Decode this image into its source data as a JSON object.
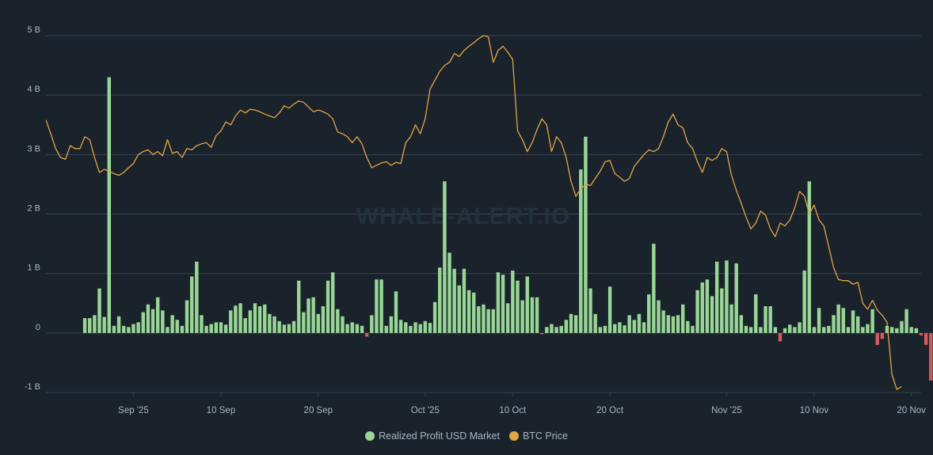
{
  "colors": {
    "background": "#1a232c",
    "grid": "#34424f",
    "profit_positive": "#98d695",
    "profit_negative": "#d65a5a",
    "btc_price": "#e3a544",
    "axis_text": "#aab4be",
    "watermark": "#22313b"
  },
  "watermark": "WHALE-ALERT.IO",
  "chart_data": {
    "type": "bar",
    "y_axis": {
      "ticks": [
        -1,
        0,
        1,
        2,
        3,
        4,
        5
      ],
      "tick_labels": [
        "-1 B",
        "0",
        "1 B",
        "2 B",
        "3 B",
        "4 B",
        "5 B"
      ],
      "range": [
        -1,
        5
      ],
      "unit": "B"
    },
    "x_axis": {
      "range": [
        "2025-08-23",
        "2025-11-21"
      ],
      "ticks": [
        {
          "date": "2025-09-01",
          "label": "Sep '25"
        },
        {
          "date": "2025-09-10",
          "label": "10 Sep"
        },
        {
          "date": "2025-09-20",
          "label": "20 Sep"
        },
        {
          "date": "2025-10-01",
          "label": "Oct '25"
        },
        {
          "date": "2025-10-10",
          "label": "10 Oct"
        },
        {
          "date": "2025-10-20",
          "label": "20 Oct"
        },
        {
          "date": "2025-11-01",
          "label": "Nov '25"
        },
        {
          "date": "2025-11-10",
          "label": "10 Nov"
        },
        {
          "date": "2025-11-20",
          "label": "20 Nov"
        }
      ]
    },
    "grid": true,
    "legend_position": "bottom-center",
    "series": [
      {
        "name": "Realized Profit USD Market",
        "type": "bar",
        "start_date": "2025-08-27",
        "step_hours": 12,
        "values": [
          0.25,
          0.25,
          0.3,
          0.75,
          0.27,
          4.3,
          0.12,
          0.28,
          0.12,
          0.1,
          0.15,
          0.18,
          0.35,
          0.48,
          0.4,
          0.6,
          0.38,
          0.1,
          0.3,
          0.22,
          0.12,
          0.55,
          0.95,
          1.2,
          0.3,
          0.12,
          0.15,
          0.18,
          0.18,
          0.14,
          0.38,
          0.46,
          0.5,
          0.25,
          0.38,
          0.5,
          0.45,
          0.48,
          0.32,
          0.28,
          0.2,
          0.14,
          0.15,
          0.2,
          0.88,
          0.35,
          0.58,
          0.6,
          0.32,
          0.45,
          0.88,
          1.02,
          0.4,
          0.28,
          0.15,
          0.18,
          0.15,
          0.12,
          -0.06,
          0.3,
          0.9,
          0.9,
          0.12,
          0.28,
          0.7,
          0.22,
          0.18,
          0.12,
          0.18,
          0.15,
          0.2,
          0.17,
          0.52,
          1.1,
          2.55,
          1.35,
          1.08,
          0.8,
          1.08,
          0.72,
          0.68,
          0.45,
          0.48,
          0.4,
          0.4,
          1.02,
          0.98,
          0.5,
          1.05,
          0.88,
          0.55,
          0.95,
          0.6,
          0.6,
          -0.02,
          0.1,
          0.15,
          0.1,
          0.12,
          0.22,
          0.32,
          0.3,
          2.75,
          3.3,
          0.75,
          0.32,
          0.1,
          0.12,
          0.78,
          0.15,
          0.18,
          0.13,
          0.3,
          0.22,
          0.32,
          0.18,
          0.65,
          1.5,
          0.55,
          0.38,
          0.3,
          0.28,
          0.3,
          0.48,
          0.2,
          0.12,
          0.72,
          0.85,
          0.9,
          0.62,
          1.2,
          0.75,
          1.22,
          0.48,
          1.17,
          0.3,
          0.12,
          0.1,
          0.65,
          0.1,
          0.45,
          0.45,
          0.1,
          -0.14,
          0.08,
          0.14,
          0.1,
          0.18,
          1.05,
          2.55,
          0.1,
          0.42,
          0.1,
          0.12,
          0.3,
          0.48,
          0.42,
          0.1,
          0.38,
          0.28,
          0.1,
          0.15,
          0.4,
          -0.2,
          -0.1,
          0.12,
          0.1,
          0.08,
          0.2,
          0.4,
          0.1,
          0.08,
          -0.04,
          -0.2,
          -0.8,
          -0.32
        ]
      },
      {
        "name": "BTC Price",
        "type": "line",
        "start_date": "2025-08-23",
        "step_hours": 12,
        "values": [
          3.58,
          3.35,
          3.1,
          2.95,
          2.92,
          3.15,
          3.1,
          3.1,
          3.3,
          3.25,
          2.95,
          2.7,
          2.75,
          2.72,
          2.68,
          2.65,
          2.7,
          2.78,
          2.85,
          3.0,
          3.05,
          3.08,
          3.0,
          3.05,
          2.98,
          3.25,
          3.02,
          3.05,
          2.95,
          3.1,
          3.08,
          3.15,
          3.18,
          3.2,
          3.12,
          3.32,
          3.4,
          3.55,
          3.5,
          3.65,
          3.75,
          3.7,
          3.76,
          3.75,
          3.72,
          3.68,
          3.65,
          3.62,
          3.7,
          3.82,
          3.78,
          3.85,
          3.9,
          3.88,
          3.8,
          3.72,
          3.75,
          3.72,
          3.68,
          3.6,
          3.38,
          3.35,
          3.3,
          3.2,
          3.3,
          3.18,
          2.95,
          2.78,
          2.82,
          2.86,
          2.88,
          2.82,
          2.87,
          2.85,
          3.2,
          3.3,
          3.5,
          3.35,
          3.6,
          4.1,
          4.25,
          4.4,
          4.5,
          4.55,
          4.7,
          4.65,
          4.75,
          4.82,
          4.88,
          4.95,
          5.0,
          4.98,
          4.55,
          4.75,
          4.82,
          4.72,
          4.6,
          3.4,
          3.25,
          3.05,
          3.2,
          3.42,
          3.6,
          3.5,
          3.05,
          3.3,
          3.2,
          2.95,
          2.55,
          2.3,
          2.42,
          2.5,
          2.48,
          2.6,
          2.72,
          2.88,
          2.9,
          2.68,
          2.62,
          2.55,
          2.6,
          2.8,
          2.9,
          3.0,
          3.08,
          3.05,
          3.1,
          3.3,
          3.55,
          3.68,
          3.5,
          3.45,
          3.2,
          3.1,
          2.88,
          2.7,
          2.95,
          2.9,
          2.95,
          3.1,
          3.05,
          2.65,
          2.4,
          2.18,
          1.95,
          1.75,
          1.85,
          2.05,
          1.98,
          1.75,
          1.62,
          1.85,
          1.8,
          1.9,
          2.1,
          2.38,
          2.3,
          2.0,
          2.15,
          1.9,
          1.8,
          1.45,
          1.1,
          0.9,
          0.88,
          0.88,
          0.82,
          0.85,
          0.5,
          0.4,
          0.55,
          0.38,
          0.3,
          0.18,
          -0.7,
          -0.95,
          -0.9
        ]
      }
    ]
  },
  "legend": {
    "items": [
      {
        "label": "Realized Profit USD Market",
        "color": "#98d695"
      },
      {
        "label": "BTC Price",
        "color": "#e3a544"
      }
    ]
  }
}
